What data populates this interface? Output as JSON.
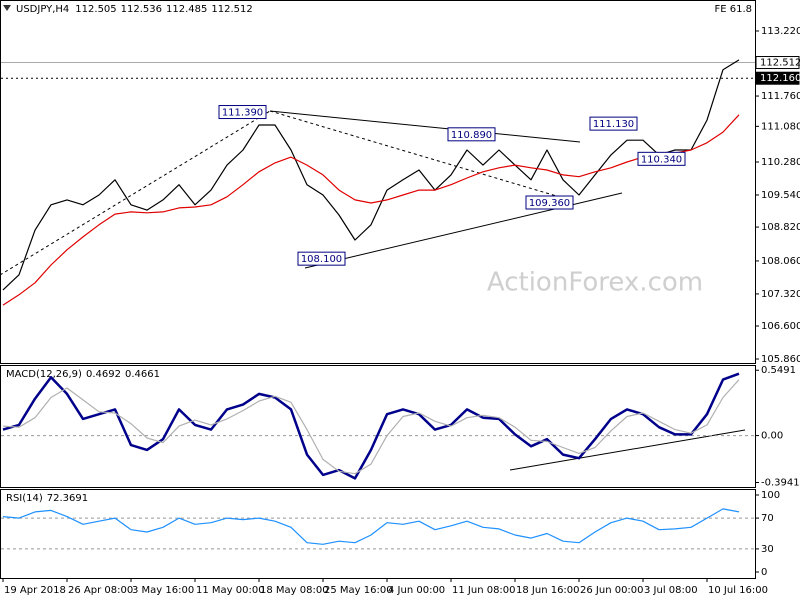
{
  "chart_data": [
    {
      "type": "line",
      "title": "USDJPY,H4",
      "ohlc": [
        112.505,
        112.536,
        112.485,
        112.512
      ],
      "label": "FE 61.8",
      "watermark": "ActionForex.com",
      "series": [
        {
          "color": "#000000",
          "values": [
            107.41,
            107.75,
            108.75,
            109.32,
            109.43,
            109.32,
            109.54,
            109.88,
            109.32,
            109.2,
            109.43,
            109.77,
            109.32,
            109.65,
            110.21,
            110.55,
            111.11,
            111.11,
            110.55,
            109.77,
            109.54,
            109.09,
            108.53,
            108.87,
            109.65,
            109.88,
            110.1,
            109.65,
            109.99,
            110.55,
            110.21,
            110.55,
            110.21,
            109.88,
            110.55,
            109.88,
            109.54,
            109.99,
            110.44,
            110.77,
            110.77,
            110.44,
            110.55,
            110.55,
            111.22,
            112.35,
            112.57
          ]
        },
        {
          "color": "#e00000",
          "values": [
            107.07,
            107.3,
            107.57,
            107.97,
            108.31,
            108.6,
            108.87,
            109.11,
            109.16,
            109.14,
            109.16,
            109.25,
            109.27,
            109.32,
            109.5,
            109.77,
            110.06,
            110.26,
            110.39,
            110.21,
            109.99,
            109.65,
            109.43,
            109.36,
            109.43,
            109.54,
            109.65,
            109.65,
            109.77,
            109.92,
            110.06,
            110.15,
            110.21,
            110.15,
            110.1,
            109.99,
            109.95,
            110.06,
            110.15,
            110.28,
            110.39,
            110.44,
            110.48,
            110.55,
            110.71,
            110.95,
            111.34
          ]
        }
      ],
      "ylim": [
        105.77,
        113.915
      ],
      "yticks": [
        {
          "value": 113.22,
          "label": "113.220"
        },
        {
          "value": 111.76,
          "label": "111.760"
        },
        {
          "value": 111.08,
          "label": "111.080"
        },
        {
          "value": 110.28,
          "label": "110.280"
        },
        {
          "value": 109.54,
          "label": "109.540"
        },
        {
          "value": 108.82,
          "label": "108.820"
        },
        {
          "value": 108.06,
          "label": "108.060"
        },
        {
          "value": 107.32,
          "label": "107.320"
        },
        {
          "value": 106.6,
          "label": "106.600"
        },
        {
          "value": 105.86,
          "label": "105.860"
        }
      ],
      "price_lines": [
        112.512,
        {
          "value": 112.16,
          "label": "112.160"
        }
      ],
      "annotations": [
        {
          "value": 111.39,
          "label": "111.390"
        },
        {
          "value": 110.89,
          "label": "110.890"
        },
        {
          "value": 111.13,
          "label": "111.130"
        },
        {
          "value": 110.34,
          "label": "110.340"
        },
        {
          "value": 109.36,
          "label": "109.360"
        },
        {
          "value": 108.1,
          "label": "108.100"
        }
      ]
    },
    {
      "type": "line",
      "title": "MACD(12,26,9)",
      "readout": [
        0.4692,
        0.4661
      ],
      "series": [
        {
          "color": "#00008b",
          "values": [
            0.05,
            0.09,
            0.31,
            0.49,
            0.35,
            0.14,
            0.18,
            0.22,
            -0.08,
            -0.12,
            -0.03,
            0.22,
            0.09,
            0.05,
            0.22,
            0.26,
            0.35,
            0.32,
            0.22,
            -0.16,
            -0.33,
            -0.29,
            -0.36,
            -0.12,
            0.18,
            0.22,
            0.18,
            0.05,
            0.09,
            0.22,
            0.15,
            0.14,
            0.01,
            -0.09,
            -0.03,
            -0.16,
            -0.19,
            -0.03,
            0.14,
            0.22,
            0.18,
            0.07,
            0.01,
            0.01,
            0.18,
            0.47,
            0.52
          ]
        },
        {
          "color": "#b0b0b0",
          "values": [
            0.08,
            0.07,
            0.15,
            0.32,
            0.4,
            0.3,
            0.2,
            0.19,
            0.1,
            -0.02,
            -0.06,
            0.08,
            0.13,
            0.09,
            0.14,
            0.21,
            0.29,
            0.33,
            0.28,
            0.05,
            -0.2,
            -0.3,
            -0.32,
            -0.24,
            0,
            0.16,
            0.19,
            0.12,
            0.08,
            0.15,
            0.17,
            0.15,
            0.07,
            -0.04,
            -0.05,
            -0.1,
            -0.15,
            -0.1,
            0.04,
            0.16,
            0.19,
            0.12,
            0.05,
            0.02,
            0.09,
            0.32,
            0.47
          ]
        }
      ],
      "ylim": [
        -0.432,
        0.593
      ],
      "yticks": [
        0.5491,
        {
          "value": 0,
          "label": "0.00"
        },
        -0.3941
      ],
      "levels": [
        0
      ]
    },
    {
      "type": "line",
      "title": "RSI(14)",
      "readout": 72.3691,
      "series": [
        {
          "color": "#1e90ff",
          "values": [
            72,
            70,
            78,
            80,
            72,
            62,
            66,
            70,
            55,
            52,
            58,
            70,
            62,
            64,
            70,
            68,
            70,
            66,
            58,
            38,
            36,
            40,
            38,
            48,
            64,
            62,
            66,
            55,
            60,
            66,
            58,
            56,
            48,
            44,
            50,
            40,
            38,
            52,
            64,
            70,
            66,
            55,
            56,
            58,
            70,
            82,
            78
          ]
        }
      ],
      "ylim": [
        -7.8,
        107.8
      ],
      "yticks": [
        100,
        70,
        30,
        0
      ],
      "levels": [
        70,
        30
      ],
      "categories": [
        "19 Apr 2018",
        null,
        null,
        null,
        "26 Apr 08:00",
        null,
        null,
        null,
        "3 May 16:00",
        null,
        null,
        null,
        "11 May 00:00",
        null,
        null,
        null,
        "18 May 08:00",
        null,
        null,
        null,
        "25 May 16:00",
        null,
        null,
        null,
        "4 Jun 00:00",
        null,
        null,
        null,
        "11 Jun 08:00",
        null,
        null,
        null,
        "18 Jun 16:00",
        null,
        null,
        null,
        "26 Jun 00:00",
        null,
        null,
        null,
        "3 Jul 08:00",
        null,
        null,
        null,
        "10 Jul 16:00",
        null,
        null
      ]
    }
  ]
}
